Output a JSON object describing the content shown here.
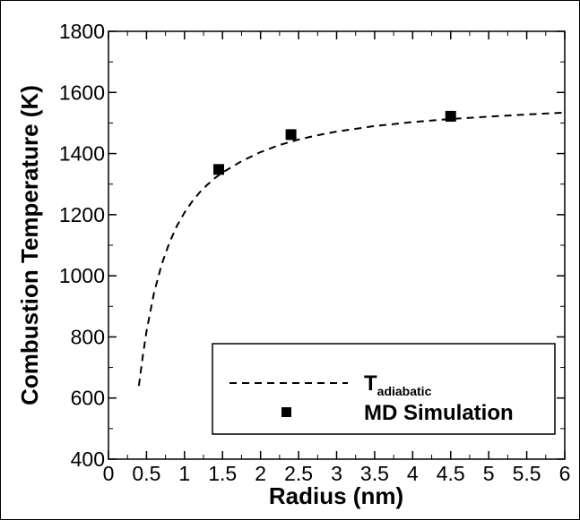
{
  "chart_data": {
    "type": "line",
    "title": "",
    "xlabel": "Radius (nm)",
    "ylabel": "Combustion Temperature (K)",
    "xlim": [
      0,
      6
    ],
    "ylim": [
      400,
      1800
    ],
    "x_ticks": [
      "0",
      "0.5",
      "1",
      "1.5",
      "2",
      "2.5",
      "3",
      "3.5",
      "4",
      "4.5",
      "5",
      "5.5",
      "6"
    ],
    "y_ticks": [
      "400",
      "600",
      "800",
      "1000",
      "1200",
      "1400",
      "1600",
      "1800"
    ],
    "grid": false,
    "legend_position": "bottom-right",
    "series": [
      {
        "name": "T",
        "name_subscript": "adiabatic",
        "style": "dashed-line",
        "color": "#000000",
        "x": [
          0.4,
          0.45,
          0.5,
          0.6,
          0.7,
          0.8,
          0.9,
          1.0,
          1.1,
          1.2,
          1.3,
          1.4,
          1.5,
          1.75,
          2.0,
          2.25,
          2.5,
          2.75,
          3.0,
          3.5,
          4.0,
          4.5,
          5.0,
          5.5,
          6.0
        ],
        "y": [
          640,
          735,
          818,
          945,
          1038,
          1108,
          1163,
          1207,
          1243,
          1273,
          1298,
          1320,
          1338,
          1375,
          1405,
          1428,
          1446,
          1460,
          1472,
          1490,
          1503,
          1513,
          1521,
          1528,
          1534
        ]
      },
      {
        "name": "MD Simulation",
        "style": "square-marker",
        "color": "#000000",
        "x": [
          1.45,
          2.4,
          4.5
        ],
        "y": [
          1348,
          1462,
          1522
        ]
      }
    ]
  }
}
